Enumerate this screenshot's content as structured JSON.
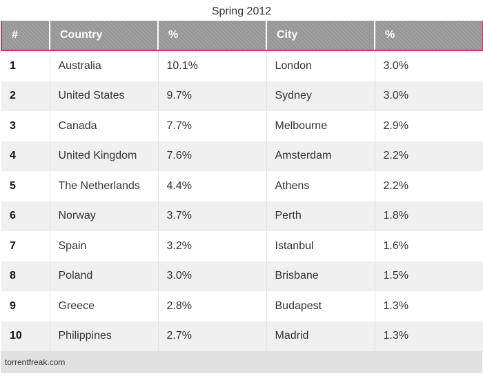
{
  "chart_data": {
    "type": "table",
    "title": "Spring 2012",
    "columns": [
      "#",
      "Country",
      "%",
      "City",
      "%"
    ],
    "rows": [
      [
        "1",
        "Australia",
        "10.1%",
        "London",
        "3.0%"
      ],
      [
        "2",
        "United States",
        "9.7%",
        "Sydney",
        "3.0%"
      ],
      [
        "3",
        "Canada",
        "7.7%",
        "Melbourne",
        "2.9%"
      ],
      [
        "4",
        "United Kingdom",
        "7.6%",
        "Amsterdam",
        "2.2%"
      ],
      [
        "5",
        "The Netherlands",
        "4.4%",
        "Athens",
        "2.2%"
      ],
      [
        "6",
        "Norway",
        "3.7%",
        "Perth",
        "1.8%"
      ],
      [
        "7",
        "Spain",
        "3.2%",
        "Istanbul",
        "1.6%"
      ],
      [
        "8",
        "Poland",
        "3.0%",
        "Brisbane",
        "1.5%"
      ],
      [
        "9",
        "Greece",
        "2.8%",
        "Budapest",
        "1.3%"
      ],
      [
        "10",
        "Philippines",
        "2.7%",
        "Madrid",
        "1.3%"
      ]
    ],
    "source": "torrentfreak.com"
  },
  "colors": {
    "header_bg": "#9b9b9b",
    "header_accent": "#d6306d",
    "row_alt": "#f0f0f0",
    "footer_bg": "#e1e1e1"
  }
}
